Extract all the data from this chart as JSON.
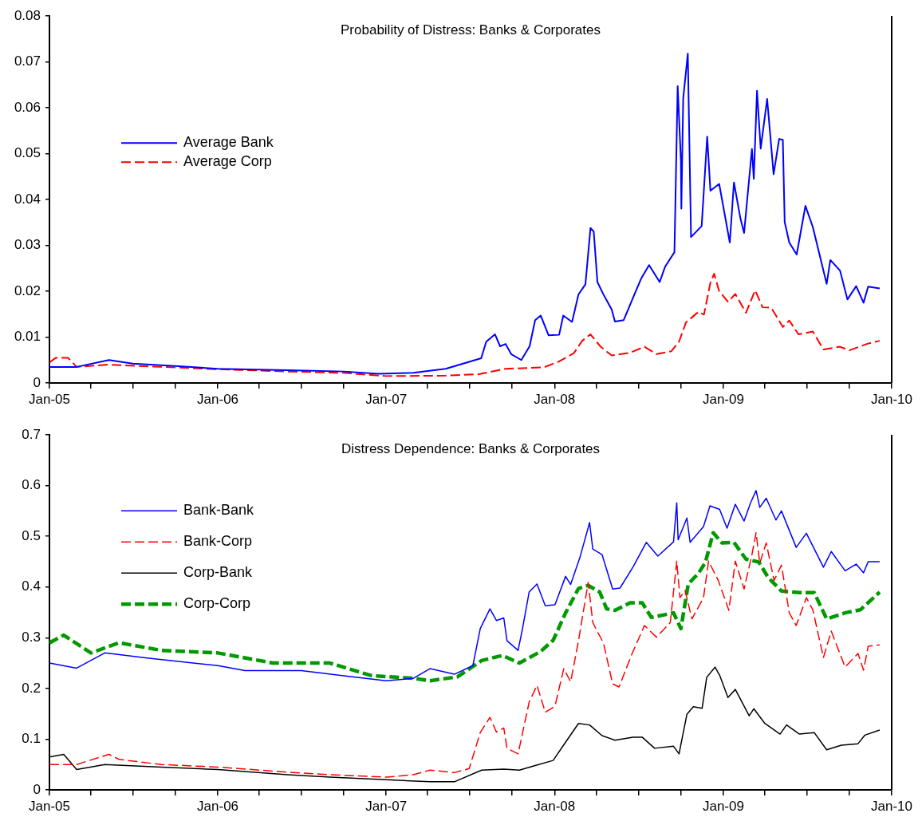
{
  "chart_data": [
    {
      "type": "line",
      "title": "Probability of Distress: Banks & Corporates",
      "legend": "top left",
      "grid": false,
      "marker": "none",
      "xlim": [
        "2005-01-01",
        "2010-01-01"
      ],
      "xticks": [
        {
          "value": "2005-01-01",
          "label": "Jan-05"
        },
        {
          "value": "2005-04-01",
          "label": null
        },
        {
          "value": "2005-07-01",
          "label": null
        },
        {
          "value": "2005-10-01",
          "label": null
        },
        {
          "value": "2006-01-01",
          "label": "Jan-06"
        },
        {
          "value": "2006-04-01",
          "label": null
        },
        {
          "value": "2006-07-01",
          "label": null
        },
        {
          "value": "2006-10-01",
          "label": null
        },
        {
          "value": "2007-01-01",
          "label": "Jan-07"
        },
        {
          "value": "2007-04-01",
          "label": null
        },
        {
          "value": "2007-07-01",
          "label": null
        },
        {
          "value": "2007-10-01",
          "label": null
        },
        {
          "value": "2008-01-01",
          "label": "Jan-08"
        },
        {
          "value": "2008-04-01",
          "label": null
        },
        {
          "value": "2008-07-01",
          "label": null
        },
        {
          "value": "2008-10-01",
          "label": null
        },
        {
          "value": "2009-01-01",
          "label": "Jan-09"
        },
        {
          "value": "2009-04-01",
          "label": null
        },
        {
          "value": "2009-07-01",
          "label": null
        },
        {
          "value": "2009-10-01",
          "label": null
        },
        {
          "value": "2010-01-01",
          "label": "Jan-10"
        }
      ],
      "ylim": [
        0,
        0.08
      ],
      "yticks": [
        0,
        0.01,
        0.02,
        0.03,
        0.04,
        0.05,
        0.06,
        0.07,
        0.08
      ],
      "series": [
        {
          "name": "Average Bank",
          "color": "#0000ff",
          "line_style": "solid",
          "x": [
            "2005-01-01",
            "2005-03-01",
            "2005-05-10",
            "2005-07-01",
            "2005-10-01",
            "2006-01-01",
            "2006-06-01",
            "2006-10-01",
            "2006-12-15",
            "2007-03-01",
            "2007-04-15",
            "2007-05-10",
            "2007-07-26",
            "2007-08-06",
            "2007-08-25",
            "2007-09-05",
            "2007-09-17",
            "2007-09-29",
            "2007-10-21",
            "2007-11-08",
            "2007-11-20",
            "2007-12-02",
            "2007-12-19",
            "2008-01-11",
            "2008-01-20",
            "2008-02-08",
            "2008-02-22",
            "2008-03-08",
            "2008-03-19",
            "2008-03-26",
            "2008-04-03",
            "2008-04-15",
            "2008-05-04",
            "2008-05-11",
            "2008-05-30",
            "2008-06-18",
            "2008-07-07",
            "2008-07-24",
            "2008-08-16",
            "2008-08-28",
            "2008-09-17",
            "2008-09-24",
            "2008-10-01",
            "2008-10-02",
            "2008-10-06",
            "2008-10-16",
            "2008-10-23",
            "2008-11-15",
            "2008-11-27",
            "2008-12-04",
            "2008-12-23",
            "2009-01-15",
            "2009-01-24",
            "2009-02-07",
            "2009-02-15",
            "2009-03-04",
            "2009-03-08",
            "2009-03-15",
            "2009-03-23",
            "2009-04-06",
            "2009-04-20",
            "2009-05-02",
            "2009-05-10",
            "2009-05-14",
            "2009-05-24",
            "2009-06-09",
            "2009-06-28",
            "2009-07-14",
            "2009-08-13",
            "2009-08-21",
            "2009-09-11",
            "2009-09-27",
            "2009-10-16",
            "2009-11-01",
            "2009-11-11",
            "2009-12-06"
          ],
          "values": [
            0.0035,
            0.0035,
            0.005,
            0.0042,
            0.0037,
            0.0031,
            0.0028,
            0.0025,
            0.002,
            0.0022,
            0.0028,
            0.0031,
            0.0054,
            0.009,
            0.0106,
            0.008,
            0.0085,
            0.0063,
            0.005,
            0.008,
            0.0137,
            0.0147,
            0.0104,
            0.0105,
            0.0147,
            0.0133,
            0.0193,
            0.0215,
            0.0338,
            0.033,
            0.022,
            0.0195,
            0.016,
            0.0134,
            0.0137,
            0.0183,
            0.0228,
            0.0257,
            0.022,
            0.0254,
            0.0285,
            0.0647,
            0.0485,
            0.038,
            0.062,
            0.0718,
            0.0318,
            0.0342,
            0.0537,
            0.0419,
            0.0434,
            0.0306,
            0.0437,
            0.0359,
            0.0327,
            0.051,
            0.0445,
            0.0637,
            0.0511,
            0.0619,
            0.0455,
            0.0532,
            0.053,
            0.0351,
            0.0306,
            0.028,
            0.0386,
            0.034,
            0.0216,
            0.0268,
            0.0245,
            0.0182,
            0.0211,
            0.0175,
            0.021,
            0.0206
          ]
        },
        {
          "name": "Average Corp",
          "color": "#ff0000",
          "line_style": "dashed",
          "x": [
            "2005-01-01",
            "2005-01-15",
            "2005-02-10",
            "2005-03-01",
            "2005-05-10",
            "2005-09-01",
            "2006-01-01",
            "2006-06-01",
            "2006-10-01",
            "2007-01-01",
            "2007-05-10",
            "2007-07-21",
            "2007-09-17",
            "2007-12-09",
            "2008-01-11",
            "2008-02-12",
            "2008-03-01",
            "2008-03-19",
            "2008-04-10",
            "2008-05-04",
            "2008-06-13",
            "2008-07-14",
            "2008-08-09",
            "2008-09-10",
            "2008-09-27",
            "2008-10-12",
            "2008-11-08",
            "2008-11-20",
            "2008-12-04",
            "2008-12-12",
            "2008-12-23",
            "2009-01-11",
            "2009-01-27",
            "2009-02-19",
            "2009-03-11",
            "2009-03-27",
            "2009-04-15",
            "2009-05-10",
            "2009-05-24",
            "2009-06-13",
            "2009-07-14",
            "2009-08-06",
            "2009-09-11",
            "2009-10-01",
            "2009-11-08",
            "2009-12-06"
          ],
          "values": [
            0.0045,
            0.0055,
            0.0055,
            0.0035,
            0.004,
            0.0035,
            0.003,
            0.0025,
            0.0022,
            0.0015,
            0.0016,
            0.0019,
            0.0031,
            0.0034,
            0.0047,
            0.0065,
            0.0092,
            0.0106,
            0.0079,
            0.006,
            0.0066,
            0.0079,
            0.0063,
            0.0069,
            0.009,
            0.0132,
            0.0155,
            0.0149,
            0.0219,
            0.0238,
            0.02,
            0.0177,
            0.0194,
            0.0153,
            0.0202,
            0.0165,
            0.0164,
            0.0122,
            0.0136,
            0.0106,
            0.0112,
            0.0073,
            0.0079,
            0.0071,
            0.0085,
            0.0092
          ]
        }
      ]
    },
    {
      "type": "line",
      "title": "Distress Dependence: Banks & Corporates",
      "legend": "top left",
      "grid": false,
      "marker": "none",
      "xlim": [
        "2005-01-01",
        "2010-01-01"
      ],
      "xticks": [
        {
          "value": "2005-01-01",
          "label": "Jan-05"
        },
        {
          "value": "2005-04-01",
          "label": null
        },
        {
          "value": "2005-07-01",
          "label": null
        },
        {
          "value": "2005-10-01",
          "label": null
        },
        {
          "value": "2006-01-01",
          "label": "Jan-06"
        },
        {
          "value": "2006-04-01",
          "label": null
        },
        {
          "value": "2006-07-01",
          "label": null
        },
        {
          "value": "2006-10-01",
          "label": null
        },
        {
          "value": "2007-01-01",
          "label": "Jan-07"
        },
        {
          "value": "2007-04-01",
          "label": null
        },
        {
          "value": "2007-07-01",
          "label": null
        },
        {
          "value": "2007-10-01",
          "label": null
        },
        {
          "value": "2008-01-01",
          "label": "Jan-08"
        },
        {
          "value": "2008-04-01",
          "label": null
        },
        {
          "value": "2008-07-01",
          "label": null
        },
        {
          "value": "2008-10-01",
          "label": null
        },
        {
          "value": "2009-01-01",
          "label": "Jan-09"
        },
        {
          "value": "2009-04-01",
          "label": null
        },
        {
          "value": "2009-07-01",
          "label": null
        },
        {
          "value": "2009-10-01",
          "label": null
        },
        {
          "value": "2010-01-01",
          "label": "Jan-10"
        }
      ],
      "ylim": [
        0,
        0.7
      ],
      "yticks": [
        0,
        0.1,
        0.2,
        0.3,
        0.4,
        0.5,
        0.6,
        0.7
      ],
      "series": [
        {
          "name": "Bank-Bank",
          "color": "#0000ff",
          "line_style": "solid",
          "x": [
            "2005-01-01",
            "2005-03-01",
            "2005-05-01",
            "2005-08-01",
            "2006-01-01",
            "2006-03-01",
            "2006-07-01",
            "2006-10-01",
            "2007-01-01",
            "2007-03-01",
            "2007-04-06",
            "2007-05-29",
            "2007-07-08",
            "2007-07-24",
            "2007-08-14",
            "2007-08-28",
            "2007-09-13",
            "2007-09-20",
            "2007-10-14",
            "2007-10-23",
            "2007-11-07",
            "2007-11-24",
            "2007-12-12",
            "2008-01-02",
            "2008-01-25",
            "2008-02-05",
            "2008-02-25",
            "2008-03-17",
            "2008-03-24",
            "2008-04-13",
            "2008-05-06",
            "2008-05-22",
            "2008-06-19",
            "2008-07-18",
            "2008-08-12",
            "2008-09-15",
            "2008-09-22",
            "2008-09-25",
            "2008-10-14",
            "2008-10-21",
            "2008-11-19",
            "2008-12-03",
            "2008-12-24",
            "2009-01-09",
            "2009-01-27",
            "2009-02-15",
            "2009-03-01",
            "2009-03-13",
            "2009-03-21",
            "2009-04-04",
            "2009-04-25",
            "2009-05-07",
            "2009-06-08",
            "2009-06-30",
            "2009-08-06",
            "2009-08-23",
            "2009-09-22",
            "2009-10-16",
            "2009-11-01",
            "2009-11-11",
            "2009-12-06"
          ],
          "values": [
            0.25,
            0.24,
            0.27,
            0.26,
            0.245,
            0.235,
            0.235,
            0.225,
            0.215,
            0.22,
            0.239,
            0.228,
            0.245,
            0.318,
            0.357,
            0.334,
            0.339,
            0.294,
            0.275,
            0.315,
            0.39,
            0.406,
            0.363,
            0.365,
            0.421,
            0.405,
            0.458,
            0.527,
            0.475,
            0.464,
            0.396,
            0.398,
            0.439,
            0.488,
            0.461,
            0.489,
            0.566,
            0.493,
            0.536,
            0.488,
            0.519,
            0.56,
            0.553,
            0.516,
            0.563,
            0.53,
            0.566,
            0.59,
            0.557,
            0.575,
            0.532,
            0.55,
            0.478,
            0.506,
            0.439,
            0.47,
            0.432,
            0.445,
            0.428,
            0.45,
            0.45
          ]
        },
        {
          "name": "Bank-Corp",
          "color": "#ff0000",
          "line_style": "dashed",
          "x": [
            "2005-01-01",
            "2005-03-01",
            "2005-05-10",
            "2005-06-01",
            "2005-09-01",
            "2006-01-01",
            "2006-06-01",
            "2006-09-01",
            "2007-01-01",
            "2007-03-01",
            "2007-04-06",
            "2007-05-29",
            "2007-06-30",
            "2007-07-24",
            "2007-08-14",
            "2007-08-28",
            "2007-09-13",
            "2007-09-20",
            "2007-10-14",
            "2007-11-07",
            "2007-11-24",
            "2007-12-12",
            "2008-01-02",
            "2008-01-21",
            "2008-02-05",
            "2008-02-22",
            "2008-03-14",
            "2008-03-24",
            "2008-04-04",
            "2008-04-16",
            "2008-05-06",
            "2008-05-20",
            "2008-06-15",
            "2008-07-14",
            "2008-08-09",
            "2008-09-08",
            "2008-09-22",
            "2008-09-29",
            "2008-10-10",
            "2008-10-25",
            "2008-11-19",
            "2008-11-30",
            "2008-12-21",
            "2009-01-13",
            "2009-01-27",
            "2009-02-15",
            "2009-03-04",
            "2009-03-13",
            "2009-03-21",
            "2009-04-04",
            "2009-04-21",
            "2009-05-07",
            "2009-05-24",
            "2009-06-08",
            "2009-06-30",
            "2009-07-14",
            "2009-08-06",
            "2009-08-23",
            "2009-09-22",
            "2009-10-20",
            "2009-11-01",
            "2009-11-11",
            "2009-12-06"
          ],
          "values": [
            0.05,
            0.05,
            0.07,
            0.06,
            0.05,
            0.045,
            0.035,
            0.03,
            0.025,
            0.03,
            0.039,
            0.034,
            0.042,
            0.113,
            0.143,
            0.114,
            0.122,
            0.082,
            0.071,
            0.173,
            0.206,
            0.153,
            0.165,
            0.239,
            0.213,
            0.294,
            0.409,
            0.33,
            0.31,
            0.29,
            0.209,
            0.203,
            0.264,
            0.324,
            0.301,
            0.33,
            0.451,
            0.379,
            0.393,
            0.337,
            0.379,
            0.451,
            0.413,
            0.354,
            0.451,
            0.396,
            0.464,
            0.507,
            0.447,
            0.487,
            0.413,
            0.443,
            0.349,
            0.324,
            0.379,
            0.355,
            0.261,
            0.313,
            0.242,
            0.269,
            0.236,
            0.283,
            0.286
          ]
        },
        {
          "name": "Corp-Bank",
          "color": "#000000",
          "line_style": "solid",
          "x": [
            "2005-01-01",
            "2005-02-01",
            "2005-03-01",
            "2005-05-01",
            "2005-09-01",
            "2006-01-01",
            "2006-06-01",
            "2006-09-01",
            "2007-01-01",
            "2007-04-06",
            "2007-05-29",
            "2007-07-27",
            "2007-09-13",
            "2007-10-17",
            "2007-11-20",
            "2007-12-29",
            "2008-01-25",
            "2008-02-22",
            "2008-03-17",
            "2008-04-13",
            "2008-05-11",
            "2008-06-19",
            "2008-07-09",
            "2008-08-05",
            "2008-09-15",
            "2008-09-27",
            "2008-10-14",
            "2008-10-28",
            "2008-11-16",
            "2008-11-26",
            "2008-12-14",
            "2008-12-24",
            "2009-01-11",
            "2009-01-27",
            "2009-02-26",
            "2009-03-08",
            "2009-04-01",
            "2009-05-04",
            "2009-05-18",
            "2009-06-15",
            "2009-07-17",
            "2009-08-13",
            "2009-09-14",
            "2009-10-20",
            "2009-11-04",
            "2009-12-06"
          ],
          "values": [
            0.065,
            0.07,
            0.04,
            0.05,
            0.045,
            0.04,
            0.03,
            0.025,
            0.02,
            0.016,
            0.016,
            0.039,
            0.041,
            0.039,
            0.048,
            0.058,
            0.094,
            0.131,
            0.128,
            0.107,
            0.098,
            0.104,
            0.104,
            0.082,
            0.086,
            0.071,
            0.149,
            0.164,
            0.161,
            0.222,
            0.242,
            0.226,
            0.182,
            0.198,
            0.146,
            0.16,
            0.131,
            0.11,
            0.128,
            0.11,
            0.113,
            0.079,
            0.088,
            0.091,
            0.108,
            0.118
          ]
        },
        {
          "name": "Corp-Corp",
          "color": "#009900",
          "line_style": "dashed",
          "x": [
            "2005-01-01",
            "2005-02-01",
            "2005-04-01",
            "2005-06-01",
            "2005-09-01",
            "2006-01-01",
            "2006-05-01",
            "2006-09-01",
            "2006-12-01",
            "2007-03-01",
            "2007-04-06",
            "2007-06-05",
            "2007-07-27",
            "2007-09-10",
            "2007-10-17",
            "2007-12-02",
            "2007-12-29",
            "2008-01-25",
            "2008-02-22",
            "2008-03-14",
            "2008-04-08",
            "2008-04-23",
            "2008-05-11",
            "2008-06-13",
            "2008-07-09",
            "2008-07-29",
            "2008-09-15",
            "2008-10-01",
            "2008-10-17",
            "2008-11-08",
            "2008-11-23",
            "2008-12-10",
            "2008-12-29",
            "2009-01-24",
            "2009-02-19",
            "2009-03-19",
            "2009-04-08",
            "2009-05-07",
            "2009-06-15",
            "2009-07-17",
            "2009-08-13",
            "2009-09-22",
            "2009-10-25",
            "2009-12-06"
          ],
          "values": [
            0.29,
            0.305,
            0.27,
            0.29,
            0.275,
            0.27,
            0.25,
            0.25,
            0.225,
            0.22,
            0.215,
            0.223,
            0.255,
            0.265,
            0.25,
            0.273,
            0.295,
            0.349,
            0.397,
            0.403,
            0.39,
            0.357,
            0.354,
            0.369,
            0.369,
            0.34,
            0.349,
            0.318,
            0.406,
            0.427,
            0.448,
            0.507,
            0.487,
            0.488,
            0.455,
            0.449,
            0.419,
            0.392,
            0.389,
            0.389,
            0.337,
            0.349,
            0.355,
            0.39
          ]
        }
      ]
    }
  ]
}
